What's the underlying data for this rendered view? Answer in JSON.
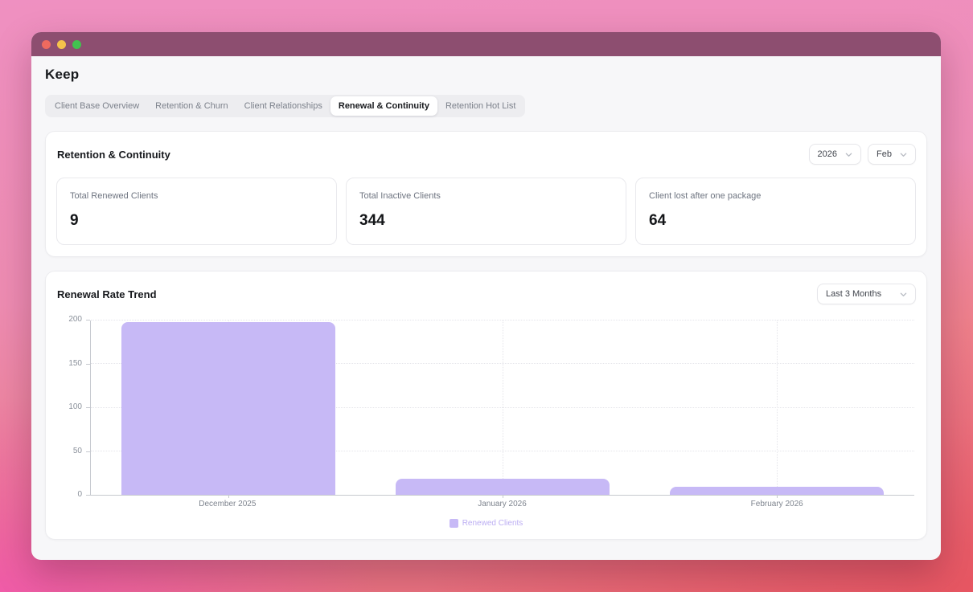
{
  "window": {
    "title": "Keep"
  },
  "tabs": [
    {
      "label": "Client Base Overview",
      "active": false
    },
    {
      "label": "Retention & Churn",
      "active": false
    },
    {
      "label": "Client Relationships",
      "active": false
    },
    {
      "label": "Renewal & Continuity",
      "active": true
    },
    {
      "label": "Retention Hot List",
      "active": false
    }
  ],
  "retention_panel": {
    "title": "Retention & Continuity",
    "year_select": "2026",
    "month_select": "Feb",
    "stats": [
      {
        "label": "Total Renewed Clients",
        "value": "9"
      },
      {
        "label": "Total Inactive Clients",
        "value": "344"
      },
      {
        "label": "Client lost after one package",
        "value": "64"
      }
    ]
  },
  "trend_panel": {
    "title": "Renewal Rate Trend",
    "range_select": "Last 3 Months"
  },
  "chart_data": {
    "type": "bar",
    "title": "Renewal Rate Trend",
    "categories": [
      "December 2025",
      "January 2026",
      "February 2026"
    ],
    "series": [
      {
        "name": "Renewed Clients",
        "values": [
          198,
          18,
          9
        ]
      }
    ],
    "xlabel": "",
    "ylabel": "",
    "ylim": [
      0,
      200
    ],
    "yticks": [
      0,
      50,
      100,
      150,
      200
    ],
    "grid": true,
    "legend_position": "bottom",
    "bar_color": "#c7b9f6",
    "legend_text_color": "#bcaef3"
  },
  "colors": {
    "titlebar": "#8d4e70",
    "accent_bar": "#c7b9f6"
  }
}
